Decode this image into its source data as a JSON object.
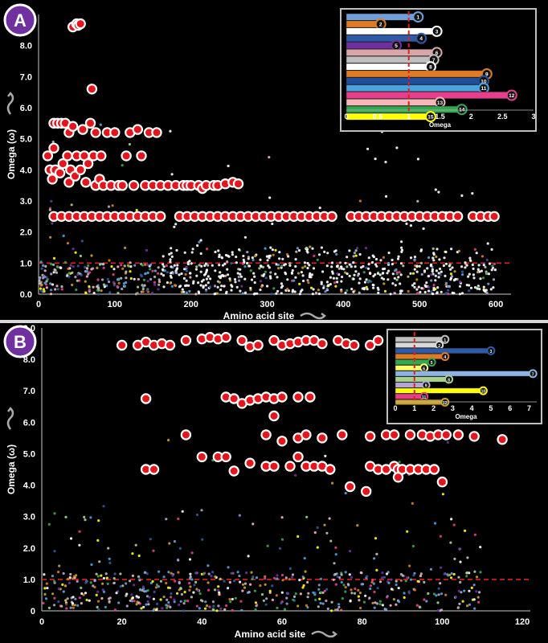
{
  "panels": [
    {
      "id": "A",
      "badge_label": "A",
      "xlabel": "Amino acid site",
      "ylabel": "Omega (ω)",
      "x_ticks": [
        0,
        100,
        200,
        300,
        400,
        500,
        600
      ],
      "y_ticks": [
        "0.0",
        "1.0",
        "2.0",
        "3.0",
        "4.0",
        "5.0",
        "6.0",
        "7.0",
        "8.0",
        "9.0"
      ],
      "xlim": [
        0,
        620
      ],
      "ylim": [
        0,
        9
      ],
      "threshold": 1.0,
      "inset": {
        "xlabel": "Omega",
        "x_ticks": [
          "0",
          "0.5",
          "1",
          "1.5",
          "2",
          "2.5",
          "3"
        ],
        "xlim": [
          0,
          3
        ],
        "threshold": 1.0,
        "bars": [
          {
            "id": "1",
            "value": 1.15,
            "color": "#6f9fd8"
          },
          {
            "id": "2",
            "value": 0.55,
            "color": "#e07b24"
          },
          {
            "id": "3",
            "value": 1.45,
            "color": "#ffffff"
          },
          {
            "id": "4",
            "value": 1.2,
            "color": "#2e5aa8"
          },
          {
            "id": "5",
            "value": 0.8,
            "color": "#7030a0"
          },
          {
            "id": "6",
            "value": 1.45,
            "color": "#d9a6a6"
          },
          {
            "id": "7",
            "value": 1.4,
            "color": "#bfbfbf"
          },
          {
            "id": "8",
            "value": 1.35,
            "color": "#ffffff"
          },
          {
            "id": "9",
            "value": 2.25,
            "color": "#e07b24"
          },
          {
            "id": "10",
            "value": 2.2,
            "color": "#1f4e9c"
          },
          {
            "id": "11",
            "value": 2.2,
            "color": "#4aa3df"
          },
          {
            "id": "12",
            "value": 2.65,
            "color": "#e83e8c"
          },
          {
            "id": "13",
            "value": 1.5,
            "color": "#f4b6b6"
          },
          {
            "id": "14",
            "value": 1.85,
            "color": "#33a852"
          },
          {
            "id": "15",
            "value": 1.35,
            "color": "#ffff00"
          }
        ]
      }
    },
    {
      "id": "B",
      "badge_label": "B",
      "xlabel": "Amino acid site",
      "ylabel": "Omega (ω)",
      "x_ticks": [
        0,
        20,
        40,
        60,
        80,
        100,
        120
      ],
      "y_ticks": [
        "0",
        "1.0",
        "2.0",
        "3.0",
        "4.0",
        "5.0",
        "6.0",
        "7.0",
        "8.0",
        "9.0"
      ],
      "xlim": [
        0,
        122
      ],
      "ylim": [
        0,
        9
      ],
      "threshold": 1.0,
      "inset": {
        "xlabel": "Omega",
        "x_ticks": [
          "0",
          "1",
          "2",
          "3",
          "4",
          "5",
          "6",
          "7"
        ],
        "xlim": [
          0,
          7.4
        ],
        "threshold": 1.0,
        "bars": [
          {
            "id": "1",
            "value": 2.6,
            "color": "#bfbfbf"
          },
          {
            "id": "2",
            "value": 2.3,
            "color": "#d9d9d9"
          },
          {
            "id": "3",
            "value": 5.0,
            "color": "#2e5aa8"
          },
          {
            "id": "4",
            "value": 2.6,
            "color": "#e07b24"
          },
          {
            "id": "5",
            "value": 1.9,
            "color": "#33a852"
          },
          {
            "id": "6",
            "value": 1.5,
            "color": "#ffff66"
          },
          {
            "id": "7",
            "value": 7.2,
            "color": "#8fb4e3"
          },
          {
            "id": "8",
            "value": 2.8,
            "color": "#a9d18e"
          },
          {
            "id": "9",
            "value": 1.6,
            "color": "#b4a7d6"
          },
          {
            "id": "10",
            "value": 4.6,
            "color": "#ffff00"
          },
          {
            "id": "11",
            "value": 1.5,
            "color": "#e83e8c"
          },
          {
            "id": "12",
            "value": 2.6,
            "color": "#c9a227"
          }
        ]
      }
    }
  ],
  "chart_data": [
    {
      "type": "scatter",
      "panel": "A",
      "xlabel": "Amino acid site",
      "ylabel": "Omega (ω)",
      "xlim": [
        0,
        620
      ],
      "ylim": [
        0,
        9
      ],
      "threshold_line": 1.0,
      "highlight_series": {
        "marker": "red circle with white outline",
        "points": [
          [
            12,
            4.45
          ],
          [
            15,
            4.0
          ],
          [
            18,
            3.7
          ],
          [
            20,
            4.7
          ],
          [
            20,
            5.5
          ],
          [
            22,
            4.0
          ],
          [
            25,
            5.5
          ],
          [
            28,
            3.9
          ],
          [
            30,
            5.5
          ],
          [
            32,
            4.2
          ],
          [
            35,
            5.5
          ],
          [
            38,
            4.45
          ],
          [
            40,
            5.2
          ],
          [
            40,
            3.6
          ],
          [
            42,
            4.0
          ],
          [
            45,
            5.4
          ],
          [
            45,
            8.6
          ],
          [
            48,
            3.8
          ],
          [
            50,
            4.45
          ],
          [
            50,
            8.7
          ],
          [
            52,
            8.65
          ],
          [
            55,
            4.0
          ],
          [
            55,
            8.7
          ],
          [
            58,
            5.3
          ],
          [
            60,
            4.45
          ],
          [
            62,
            3.6
          ],
          [
            65,
            4.2
          ],
          [
            68,
            5.5
          ],
          [
            70,
            6.6
          ],
          [
            72,
            4.45
          ],
          [
            75,
            3.5
          ],
          [
            75,
            5.2
          ],
          [
            80,
            3.7
          ],
          [
            82,
            4.45
          ],
          [
            85,
            3.5
          ],
          [
            90,
            5.2
          ],
          [
            95,
            3.5
          ],
          [
            100,
            5.2
          ],
          [
            105,
            3.5
          ],
          [
            110,
            3.5
          ],
          [
            115,
            4.45
          ],
          [
            120,
            5.2
          ],
          [
            125,
            3.5
          ],
          [
            130,
            5.3
          ],
          [
            135,
            4.45
          ],
          [
            140,
            3.5
          ],
          [
            145,
            5.2
          ],
          [
            150,
            3.5
          ],
          [
            155,
            5.2
          ],
          [
            160,
            3.5
          ],
          [
            170,
            3.5
          ],
          [
            180,
            3.5
          ],
          [
            190,
            3.5
          ],
          [
            195,
            3.5
          ],
          [
            200,
            3.5
          ],
          [
            210,
            3.5
          ],
          [
            215,
            3.4
          ],
          [
            220,
            3.5
          ],
          [
            230,
            3.5
          ],
          [
            235,
            3.5
          ],
          [
            245,
            3.55
          ],
          [
            255,
            3.6
          ],
          [
            262,
            3.55
          ],
          [
            20,
            2.5
          ],
          [
            30,
            2.5
          ],
          [
            40,
            2.5
          ],
          [
            50,
            2.5
          ],
          [
            60,
            2.5
          ],
          [
            70,
            2.5
          ],
          [
            80,
            2.5
          ],
          [
            90,
            2.5
          ],
          [
            100,
            2.5
          ],
          [
            110,
            2.5
          ],
          [
            120,
            2.5
          ],
          [
            130,
            2.5
          ],
          [
            140,
            2.5
          ],
          [
            150,
            2.5
          ],
          [
            160,
            2.5
          ],
          [
            185,
            2.5
          ],
          [
            195,
            2.5
          ],
          [
            205,
            2.5
          ],
          [
            215,
            2.5
          ],
          [
            225,
            2.5
          ],
          [
            235,
            2.5
          ],
          [
            245,
            2.5
          ],
          [
            255,
            2.5
          ],
          [
            265,
            2.5
          ],
          [
            275,
            2.5
          ],
          [
            285,
            2.5
          ],
          [
            295,
            2.5
          ],
          [
            305,
            2.5
          ],
          [
            315,
            2.5
          ],
          [
            325,
            2.5
          ],
          [
            335,
            2.5
          ],
          [
            345,
            2.5
          ],
          [
            355,
            2.5
          ],
          [
            365,
            2.5
          ],
          [
            375,
            2.5
          ],
          [
            385,
            2.5
          ],
          [
            410,
            2.5
          ],
          [
            420,
            2.5
          ],
          [
            430,
            2.5
          ],
          [
            440,
            2.5
          ],
          [
            450,
            2.5
          ],
          [
            460,
            2.5
          ],
          [
            470,
            2.5
          ],
          [
            480,
            2.5
          ],
          [
            490,
            2.5
          ],
          [
            500,
            2.5
          ],
          [
            510,
            2.5
          ],
          [
            520,
            2.5
          ],
          [
            530,
            2.5
          ],
          [
            540,
            2.5
          ],
          [
            550,
            2.5
          ],
          [
            570,
            2.5
          ],
          [
            580,
            2.5
          ],
          [
            590,
            2.5
          ],
          [
            598,
            2.5
          ]
        ]
      },
      "background_series": {
        "marker": "small colored dots",
        "note": "many low-omega sites (mostly below 1.0) across all positions"
      }
    },
    {
      "type": "scatter",
      "panel": "B",
      "xlabel": "Amino acid site",
      "ylabel": "Omega (ω)",
      "xlim": [
        0,
        122
      ],
      "ylim": [
        0,
        9
      ],
      "threshold_line": 1.0,
      "highlight_series": {
        "marker": "red circle with white outline",
        "points": [
          [
            20,
            8.45
          ],
          [
            24,
            8.45
          ],
          [
            26,
            8.55
          ],
          [
            28,
            8.45
          ],
          [
            30,
            8.5
          ],
          [
            32,
            8.45
          ],
          [
            36,
            8.6
          ],
          [
            40,
            8.65
          ],
          [
            42,
            8.7
          ],
          [
            44,
            8.65
          ],
          [
            46,
            8.7
          ],
          [
            50,
            8.6
          ],
          [
            52,
            8.4
          ],
          [
            54,
            8.45
          ],
          [
            58,
            8.6
          ],
          [
            60,
            8.45
          ],
          [
            62,
            8.5
          ],
          [
            64,
            8.55
          ],
          [
            66,
            8.6
          ],
          [
            68,
            8.6
          ],
          [
            70,
            8.5
          ],
          [
            74,
            8.6
          ],
          [
            76,
            8.5
          ],
          [
            78,
            8.45
          ],
          [
            82,
            8.45
          ],
          [
            84,
            8.6
          ],
          [
            26,
            6.75
          ],
          [
            46,
            6.8
          ],
          [
            48,
            6.75
          ],
          [
            50,
            6.6
          ],
          [
            52,
            6.7
          ],
          [
            54,
            6.75
          ],
          [
            56,
            6.8
          ],
          [
            58,
            6.75
          ],
          [
            60,
            6.8
          ],
          [
            64,
            6.8
          ],
          [
            67,
            6.8
          ],
          [
            36,
            5.6
          ],
          [
            56,
            5.6
          ],
          [
            60,
            5.4
          ],
          [
            64,
            5.5
          ],
          [
            66,
            5.6
          ],
          [
            70,
            5.5
          ],
          [
            75,
            5.6
          ],
          [
            82,
            5.55
          ],
          [
            86,
            5.6
          ],
          [
            88,
            5.6
          ],
          [
            92,
            5.6
          ],
          [
            95,
            5.6
          ],
          [
            97,
            5.55
          ],
          [
            99,
            5.6
          ],
          [
            101,
            5.6
          ],
          [
            104,
            5.6
          ],
          [
            108,
            5.55
          ],
          [
            115,
            5.45
          ],
          [
            26,
            4.5
          ],
          [
            28,
            4.5
          ],
          [
            40,
            4.9
          ],
          [
            44,
            4.9
          ],
          [
            46,
            4.9
          ],
          [
            48,
            4.45
          ],
          [
            52,
            4.7
          ],
          [
            56,
            4.6
          ],
          [
            58,
            4.6
          ],
          [
            62,
            4.6
          ],
          [
            64,
            4.9
          ],
          [
            66,
            4.6
          ],
          [
            68,
            4.6
          ],
          [
            70,
            4.6
          ],
          [
            72,
            4.5
          ],
          [
            77,
            3.95
          ],
          [
            81,
            3.8
          ],
          [
            82,
            4.6
          ],
          [
            84,
            4.5
          ],
          [
            86,
            4.5
          ],
          [
            88,
            4.6
          ],
          [
            89,
            4.5
          ],
          [
            90,
            4.5
          ],
          [
            92,
            4.5
          ],
          [
            94,
            4.5
          ],
          [
            96,
            4.5
          ],
          [
            98,
            4.5
          ],
          [
            100,
            4.1
          ],
          [
            89,
            4.25
          ],
          [
            58,
            6.2
          ]
        ]
      },
      "background_series": {
        "marker": "small colored dots",
        "note": "many low-omega sites (mostly below 1.2) across all positions"
      }
    }
  ]
}
